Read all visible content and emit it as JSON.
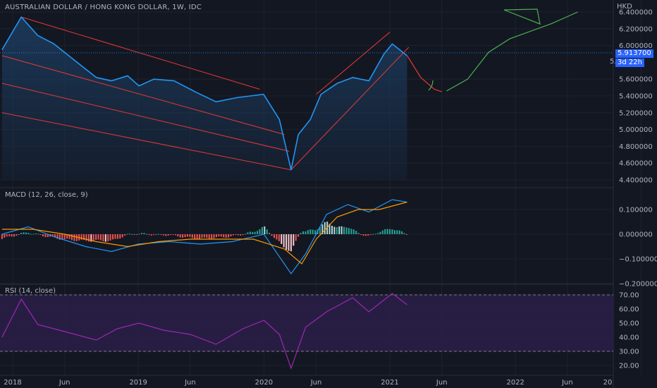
{
  "header": {
    "title": "AUSTRALIAN DOLLAR / HONG KONG DOLLAR, 1W, IDC",
    "currency": "HKD"
  },
  "price_tags": {
    "last_price": "5.913700",
    "countdown": "3d 22h",
    "under_tag": "5."
  },
  "colors": {
    "background": "#131722",
    "grid": "#1e222d",
    "price_line": "#2196f3",
    "price_fill": "#1c3b5e",
    "channel": "#e53935",
    "projection_red": "#e53935",
    "projection_green": "#4caf50",
    "macd_line": "#2196f3",
    "signal_line": "#ff9800",
    "hist_pos": "#26a69a",
    "hist_pos_strong": "#b2dfdb",
    "hist_neg": "#ef5350",
    "hist_neg_strong": "#ffcdd2",
    "rsi_line": "#9c27b0",
    "rsi_band": "#2a1e47"
  },
  "macd_label": "MACD (12, 26, close, 9)",
  "rsi_label": "RSI (14, close)",
  "chart_data": [
    {
      "type": "line",
      "pane": "price",
      "title": "AUSTRALIAN DOLLAR / HONG KONG DOLLAR, 1W, IDC",
      "ylabel": "HKD",
      "ylim": [
        4.3,
        6.5
      ],
      "y_ticks": [
        "6.400000",
        "6.200000",
        "6.000000",
        "5.600000",
        "5.400000",
        "5.200000",
        "5.000000",
        "4.800000",
        "4.600000",
        "4.400000"
      ],
      "x_ticks": [
        "2018",
        "Jun",
        "2019",
        "Jun",
        "2020",
        "Jun",
        "2021",
        "Jun",
        "2022",
        "Jun",
        "20"
      ],
      "series": [
        {
          "x": [
            "2017-12-01",
            "2018-01-26",
            "2018-03-15",
            "2018-05-01",
            "2018-07-01",
            "2018-09-01",
            "2018-10-15",
            "2018-12-01",
            "2019-01-03",
            "2019-02-15",
            "2019-04-15",
            "2019-06-15",
            "2019-08-15",
            "2019-10-15",
            "2019-12-31",
            "2020-02-15",
            "2020-03-20",
            "2020-04-10",
            "2020-05-15",
            "2020-06-15",
            "2020-08-01",
            "2020-09-15",
            "2020-11-01",
            "2020-12-15",
            "2021-01-08",
            "2021-02-20"
          ],
          "values": [
            5.95,
            6.34,
            6.12,
            6.02,
            5.82,
            5.62,
            5.58,
            5.64,
            5.52,
            5.6,
            5.58,
            5.45,
            5.33,
            5.38,
            5.42,
            5.12,
            4.52,
            4.94,
            5.12,
            5.42,
            5.55,
            5.62,
            5.58,
            5.9,
            6.02,
            5.88
          ]
        }
      ],
      "annotations": {
        "last_price": 5.9137,
        "projection_red": {
          "x": [
            "2021-02-20",
            "2021-04-01",
            "2021-05-10",
            "2021-06-01"
          ],
          "values": [
            5.88,
            5.62,
            5.48,
            5.45
          ]
        },
        "projection_green": {
          "x": [
            "2021-06-15",
            "2021-08-15",
            "2021-10-15",
            "2021-12-15",
            "2022-04-15",
            "2022-07-01"
          ],
          "values": [
            5.46,
            5.6,
            5.92,
            6.08,
            6.26,
            6.4
          ]
        }
      }
    },
    {
      "type": "line",
      "pane": "macd",
      "title": "MACD (12, 26, close, 9)",
      "ylim": [
        -0.2,
        0.17
      ],
      "y_ticks": [
        "0.100000",
        "0.000000",
        "−0.100000",
        "−0.200000"
      ],
      "series": [
        {
          "name": "MACD",
          "x": [
            "2017-12-01",
            "2018-02-15",
            "2018-05-01",
            "2018-08-01",
            "2018-10-15",
            "2019-01-01",
            "2019-04-01",
            "2019-07-01",
            "2019-10-01",
            "2020-01-01",
            "2020-03-20",
            "2020-05-01",
            "2020-07-01",
            "2020-09-01",
            "2020-11-01",
            "2021-01-08",
            "2021-02-20"
          ],
          "values": [
            0.0,
            0.03,
            -0.01,
            -0.05,
            -0.07,
            -0.04,
            -0.03,
            -0.04,
            -0.03,
            0.0,
            -0.16,
            -0.08,
            0.08,
            0.12,
            0.09,
            0.14,
            0.13
          ]
        },
        {
          "name": "Signal",
          "x": [
            "2017-12-01",
            "2018-03-01",
            "2018-06-01",
            "2018-09-01",
            "2018-12-01",
            "2019-03-01",
            "2019-06-01",
            "2019-09-01",
            "2019-12-01",
            "2020-03-01",
            "2020-04-20",
            "2020-06-01",
            "2020-08-01",
            "2020-10-01",
            "2020-12-01",
            "2021-02-20"
          ],
          "values": [
            0.02,
            0.02,
            0.0,
            -0.03,
            -0.05,
            -0.03,
            -0.02,
            -0.02,
            -0.02,
            -0.06,
            -0.12,
            -0.02,
            0.07,
            0.1,
            0.1,
            0.13
          ]
        }
      ],
      "histogram": {
        "positive_periods": [
          "2018-02",
          "2019-01",
          "2020-06",
          "2020-07",
          "2020-08",
          "2020-12",
          "2021-01"
        ],
        "negative_periods": [
          "2018-04",
          "2019-08",
          "2020-03"
        ]
      }
    },
    {
      "type": "line",
      "pane": "rsi",
      "title": "RSI (14, close)",
      "ylim": [
        15,
        75
      ],
      "y_ticks": [
        "70.00",
        "60.00",
        "50.00",
        "40.00",
        "30.00",
        "20.00"
      ],
      "levels": [
        70,
        30
      ],
      "series": [
        {
          "x": [
            "2017-12-01",
            "2018-01-26",
            "2018-03-15",
            "2018-06-01",
            "2018-09-01",
            "2018-11-01",
            "2019-01-03",
            "2019-03-15",
            "2019-06-01",
            "2019-08-15",
            "2019-11-01",
            "2020-01-01",
            "2020-02-15",
            "2020-03-20",
            "2020-05-01",
            "2020-07-01",
            "2020-09-15",
            "2020-11-01",
            "2021-01-08",
            "2021-02-20"
          ],
          "values": [
            40,
            67,
            49,
            44,
            38,
            46,
            50,
            45,
            42,
            35,
            46,
            52,
            42,
            18,
            47,
            58,
            68,
            58,
            71,
            63
          ]
        }
      ]
    }
  ]
}
